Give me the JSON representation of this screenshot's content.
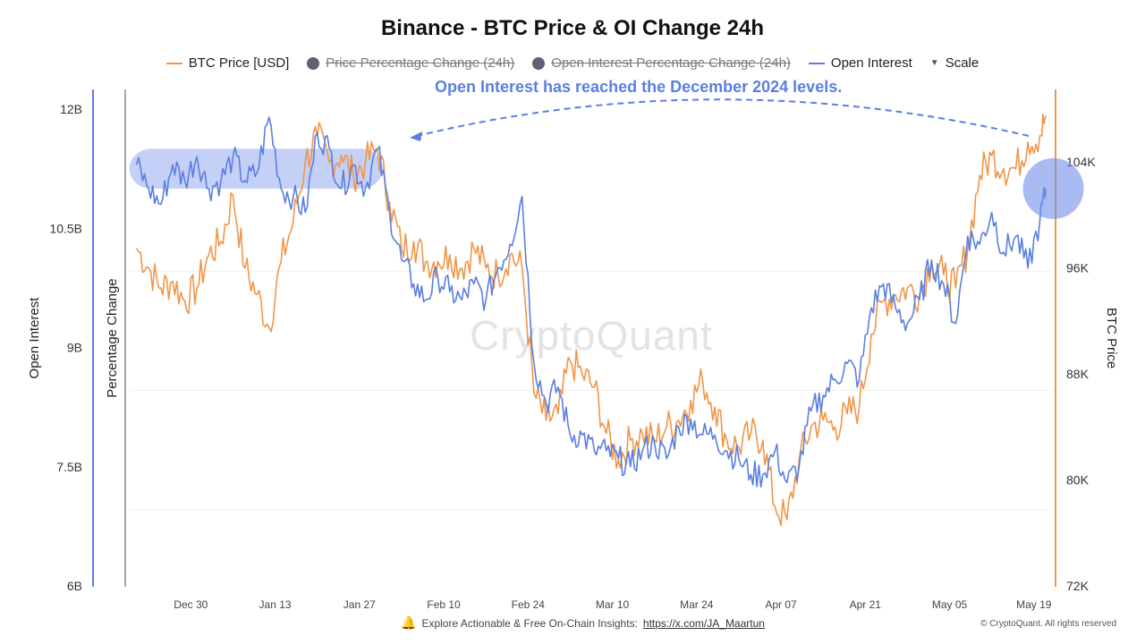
{
  "title": "Binance - BTC Price & OI Change 24h",
  "legend": [
    {
      "label": "BTC Price [USD]",
      "kind": "line",
      "color": "#f0964a",
      "enabled": true
    },
    {
      "label": "Price Percentage Change (24h)",
      "kind": "dot",
      "color": "#5f6073",
      "enabled": false
    },
    {
      "label": "Open Interest Percentage Change (24h)",
      "kind": "dot",
      "color": "#5f6073",
      "enabled": false
    },
    {
      "label": "Open Interest",
      "kind": "line",
      "color": "#5b7fe0",
      "enabled": true
    },
    {
      "label": "Scale",
      "kind": "triangle",
      "color": "#555555",
      "enabled": true
    }
  ],
  "annotation": "Open Interest has reached the December 2024 levels.",
  "watermark": "CryptoQuant",
  "footer": {
    "text": "Explore Actionable & Free On-Chain Insights:",
    "link": "https://x.com/JA_Maartun",
    "copyright": "© CryptoQuant. All rights reserved"
  },
  "chart_data": {
    "type": "line",
    "x_ticks": [
      "Dec 30",
      "Jan 13",
      "Jan 27",
      "Feb 10",
      "Feb 24",
      "Mar 10",
      "Mar 24",
      "Apr 07",
      "Apr 21",
      "May 05",
      "May 19"
    ],
    "left_axis": {
      "label": "Open Interest",
      "ticks": [
        "12B",
        "10.5B",
        "9B",
        "7.5B",
        "6B"
      ],
      "range": [
        6,
        12
      ],
      "unit": "B"
    },
    "middle_axis": {
      "label": "Percentage Change"
    },
    "right_axis": {
      "label": "BTC Price",
      "ticks": [
        "104K",
        "96K",
        "88K",
        "80K",
        "72K"
      ],
      "range": [
        72,
        108
      ],
      "unit": "K"
    },
    "grid": true,
    "legend_position": "top",
    "series": [
      {
        "name": "BTC Price [USD]",
        "axis": "right",
        "color": "#f0964a",
        "x": [
          "Dec 21",
          "Dec 23",
          "Dec 25",
          "Dec 27",
          "Dec 29",
          "Dec 31",
          "Jan 02",
          "Jan 04",
          "Jan 06",
          "Jan 08",
          "Jan 10",
          "Jan 12",
          "Jan 14",
          "Jan 16",
          "Jan 18",
          "Jan 20",
          "Jan 22",
          "Jan 24",
          "Jan 26",
          "Jan 28",
          "Jan 30",
          "Feb 01",
          "Feb 03",
          "Feb 05",
          "Feb 07",
          "Feb 09",
          "Feb 11",
          "Feb 13",
          "Feb 15",
          "Feb 17",
          "Feb 19",
          "Feb 21",
          "Feb 23",
          "Feb 25",
          "Feb 27",
          "Mar 01",
          "Mar 03",
          "Mar 05",
          "Mar 07",
          "Mar 09",
          "Mar 11",
          "Mar 13",
          "Mar 15",
          "Mar 17",
          "Mar 19",
          "Mar 21",
          "Mar 23",
          "Mar 25",
          "Mar 27",
          "Mar 29",
          "Mar 31",
          "Apr 02",
          "Apr 04",
          "Apr 06",
          "Apr 08",
          "Apr 10",
          "Apr 12",
          "Apr 14",
          "Apr 16",
          "Apr 18",
          "Apr 20",
          "Apr 22",
          "Apr 24",
          "Apr 26",
          "Apr 28",
          "Apr 30",
          "May 02",
          "May 04",
          "May 06",
          "May 08",
          "May 10",
          "May 12",
          "May 14",
          "May 16",
          "May 18",
          "May 20",
          "May 21"
        ],
        "values": [
          97.5,
          96.0,
          94.5,
          95.0,
          93.5,
          94.5,
          97.0,
          98.0,
          101.5,
          96.0,
          94.0,
          91.5,
          96.5,
          99.5,
          104.0,
          106.0,
          104.0,
          104.5,
          103.0,
          104.0,
          105.0,
          101.0,
          97.5,
          98.0,
          96.5,
          96.5,
          97.0,
          96.0,
          97.5,
          96.0,
          95.5,
          97.0,
          96.0,
          86.5,
          84.5,
          85.0,
          89.0,
          88.0,
          87.0,
          83.5,
          81.5,
          83.0,
          83.5,
          83.0,
          84.0,
          84.5,
          86.0,
          87.5,
          85.5,
          83.0,
          82.5,
          83.5,
          83.0,
          78.0,
          77.0,
          81.5,
          84.0,
          84.5,
          84.0,
          85.0,
          85.5,
          91.0,
          93.5,
          94.0,
          94.5,
          94.0,
          96.5,
          95.5,
          94.5,
          97.5,
          103.0,
          104.5,
          103.5,
          103.5,
          105.5,
          106.0,
          107.5
        ]
      },
      {
        "name": "Open Interest",
        "axis": "left",
        "color": "#5b7fe0",
        "x": [
          "Dec 21",
          "Dec 23",
          "Dec 25",
          "Dec 27",
          "Dec 29",
          "Dec 31",
          "Jan 02",
          "Jan 04",
          "Jan 06",
          "Jan 08",
          "Jan 10",
          "Jan 12",
          "Jan 14",
          "Jan 16",
          "Jan 18",
          "Jan 20",
          "Jan 22",
          "Jan 24",
          "Jan 26",
          "Jan 28",
          "Jan 30",
          "Feb 01",
          "Feb 03",
          "Feb 05",
          "Feb 07",
          "Feb 09",
          "Feb 11",
          "Feb 13",
          "Feb 15",
          "Feb 17",
          "Feb 19",
          "Feb 21",
          "Feb 23",
          "Feb 25",
          "Feb 27",
          "Mar 01",
          "Mar 03",
          "Mar 05",
          "Mar 07",
          "Mar 09",
          "Mar 11",
          "Mar 13",
          "Mar 15",
          "Mar 17",
          "Mar 19",
          "Mar 21",
          "Mar 23",
          "Mar 25",
          "Mar 27",
          "Mar 29",
          "Mar 31",
          "Apr 02",
          "Apr 04",
          "Apr 06",
          "Apr 08",
          "Apr 10",
          "Apr 12",
          "Apr 14",
          "Apr 16",
          "Apr 18",
          "Apr 20",
          "Apr 22",
          "Apr 24",
          "Apr 26",
          "Apr 28",
          "Apr 30",
          "May 02",
          "May 04",
          "May 06",
          "May 08",
          "May 10",
          "May 12",
          "May 14",
          "May 16",
          "May 18",
          "May 20",
          "May 21"
        ],
        "values": [
          11.3,
          11.0,
          10.8,
          11.3,
          11.1,
          11.4,
          11.0,
          11.1,
          11.4,
          11.1,
          11.2,
          11.9,
          11.0,
          10.9,
          10.7,
          11.7,
          11.5,
          11.0,
          11.3,
          11.0,
          11.5,
          10.7,
          10.1,
          9.8,
          9.6,
          9.9,
          9.7,
          9.6,
          9.8,
          9.6,
          10.0,
          10.3,
          10.9,
          8.8,
          8.3,
          8.5,
          7.9,
          7.9,
          7.7,
          7.7,
          7.6,
          7.5,
          7.7,
          7.8,
          7.6,
          8.0,
          8.1,
          7.9,
          7.9,
          7.7,
          7.6,
          7.4,
          7.4,
          7.7,
          7.3,
          7.5,
          8.2,
          8.4,
          8.6,
          8.8,
          8.6,
          9.5,
          9.8,
          9.5,
          9.3,
          9.6,
          10.1,
          9.8,
          9.3,
          10.4,
          10.3,
          10.7,
          10.2,
          10.4,
          10.0,
          10.6,
          11.0
        ]
      }
    ],
    "highlights": [
      {
        "series": "Open Interest",
        "from": "Dec 21",
        "to": "Jan 30",
        "level_range_B": [
          11.0,
          11.5
        ]
      },
      {
        "series": "Open Interest",
        "at": "May 20"
      }
    ]
  }
}
